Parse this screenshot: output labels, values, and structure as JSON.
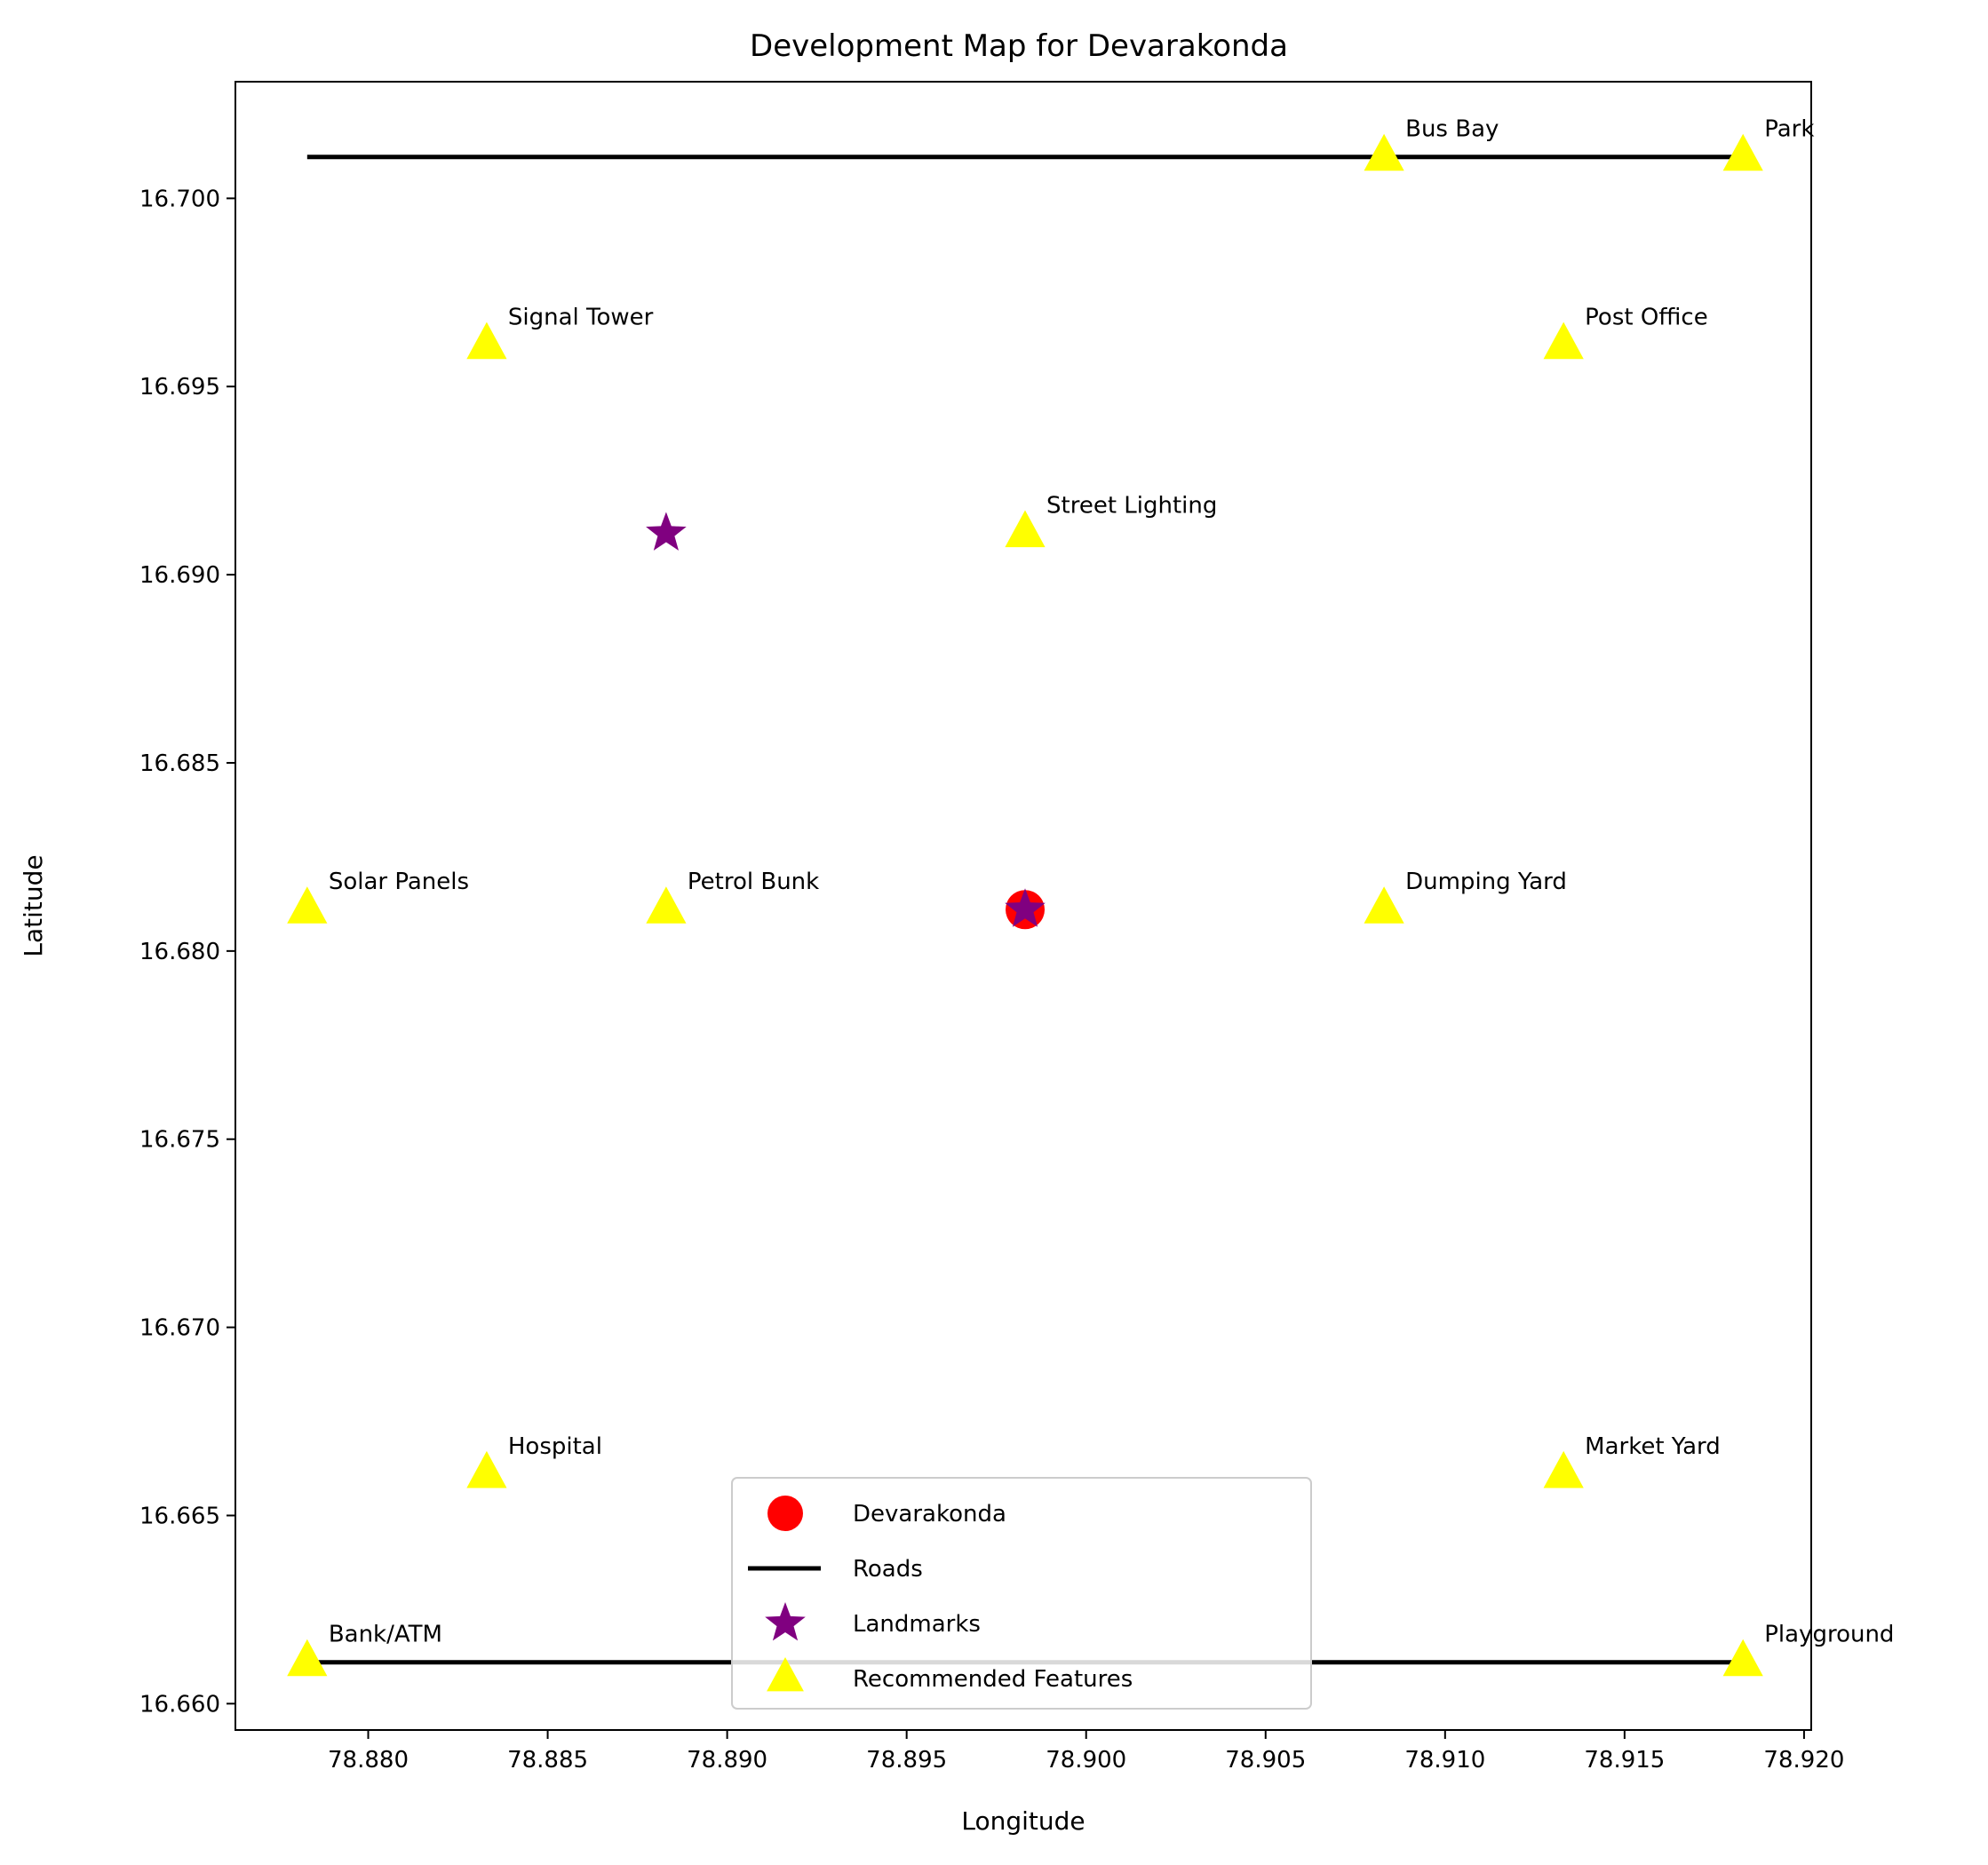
{
  "chart_data": {
    "type": "scatter",
    "title": "Development Map for Devarakonda",
    "xlabel": "Longitude",
    "ylabel": "Latitude",
    "xlim": [
      78.8763,
      78.9202
    ],
    "ylim": [
      16.6593,
      16.7031
    ],
    "x_ticks": [
      "78.880",
      "78.885",
      "78.890",
      "78.895",
      "78.900",
      "78.905",
      "78.910",
      "78.915",
      "78.920"
    ],
    "y_ticks": [
      "16.660",
      "16.665",
      "16.670",
      "16.675",
      "16.680",
      "16.685",
      "16.690",
      "16.695",
      "16.700"
    ],
    "grid": false,
    "legend_position": "bottom-center",
    "roads": [
      {
        "x": [
          78.8783,
          78.9183
        ],
        "y": [
          16.7011,
          16.7011
        ]
      },
      {
        "x": [
          78.8783,
          78.9183
        ],
        "y": [
          16.6611,
          16.6611
        ]
      }
    ],
    "town": {
      "name": "Devarakonda",
      "x": 78.8983,
      "y": 16.6811
    },
    "landmarks": [
      {
        "x": 78.8883,
        "y": 16.6911
      },
      {
        "x": 78.8983,
        "y": 16.6811
      }
    ],
    "features": [
      {
        "label": "Bus Bay",
        "x": 78.9083,
        "y": 16.7011
      },
      {
        "label": "Park",
        "x": 78.9183,
        "y": 16.7011
      },
      {
        "label": "Signal Tower",
        "x": 78.8833,
        "y": 16.6961
      },
      {
        "label": "Post Office",
        "x": 78.9133,
        "y": 16.6961
      },
      {
        "label": "Street Lighting",
        "x": 78.8983,
        "y": 16.6911
      },
      {
        "label": "Solar Panels",
        "x": 78.8783,
        "y": 16.6811
      },
      {
        "label": "Petrol Bunk",
        "x": 78.8883,
        "y": 16.6811
      },
      {
        "label": "Dumping Yard",
        "x": 78.9083,
        "y": 16.6811
      },
      {
        "label": "Hospital",
        "x": 78.8833,
        "y": 16.6661
      },
      {
        "label": "Market Yard",
        "x": 78.9133,
        "y": 16.6661
      },
      {
        "label": "Bank/ATM",
        "x": 78.8783,
        "y": 16.6611
      },
      {
        "label": "Playground",
        "x": 78.9183,
        "y": 16.6611
      }
    ],
    "legend": [
      {
        "label": "Devarakonda",
        "marker": "circle"
      },
      {
        "label": "Roads",
        "marker": "line"
      },
      {
        "label": "Landmarks",
        "marker": "star"
      },
      {
        "label": "Recommended Features",
        "marker": "triangle"
      }
    ],
    "colors": {
      "town": "#ff0000",
      "roads": "#000000",
      "landmarks": "#800080",
      "features": "#ffff00"
    }
  }
}
